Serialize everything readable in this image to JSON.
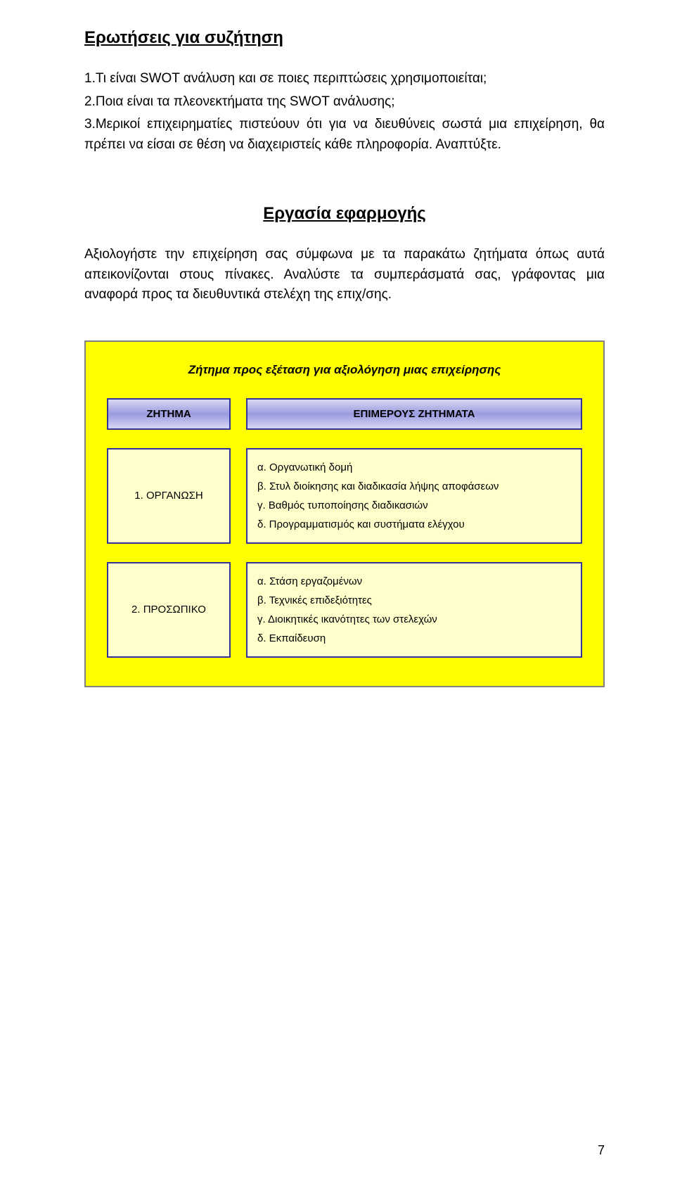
{
  "heading1": "Ερωτήσεις για συζήτηση",
  "questions": [
    "1.Τι είναι SWOT ανάλυση και σε ποιες περιπτώσεις χρησιμοποιείται;",
    "2.Ποια είναι τα πλεονεκτήματα της SWOT ανάλυσης;",
    "3.Μερικοί επιχειρηματίες πιστεύουν ότι για να διευθύνεις σωστά μια επιχείρηση, θα πρέπει να είσαι σε θέση να διαχειριστείς κάθε πληροφορία. Αναπτύξτε."
  ],
  "heading2": "Εργασία εφαρμογής",
  "para": "Αξιολογήστε την επιχείρηση σας σύμφωνα με τα παρακάτω ζητήματα όπως αυτά απεικονίζονται στους πίνακες. Αναλύστε τα συμπεράσματά σας, γράφοντας μια αναφορά προς τα διευθυντικά στελέχη της επιχ/σης.",
  "chart": {
    "bg_color": "#ffff00",
    "border_color": "#808080",
    "cell_border_color": "#333399",
    "cell_bg_color": "#ffffcc",
    "header_gradient_top": "#d7d7f3",
    "header_gradient_mid": "#9a9ae0",
    "title": "Ζήτημα προς εξέταση για αξιολόγηση μιας επιχείρησης",
    "header_left": "ΖΗΤΗΜΑ",
    "header_right": "ΕΠΙΜΕΡΟΥΣ ΖΗΤΗΜΑΤΑ",
    "rows": [
      {
        "left": "1. ΟΡΓΑΝΩΣΗ",
        "right": [
          "α. Οργανωτική δομή",
          "β. Στυλ διοίκησης και διαδικασία λήψης αποφάσεων",
          "γ. Βαθμός τυποποίησης διαδικασιών",
          "δ. Προγραμματισμός και συστήματα ελέγχου"
        ]
      },
      {
        "left": "2. ΠΡΟΣΩΠΙΚΟ",
        "right": [
          "α. Στάση εργαζομένων",
          "β. Τεχνικές επιδεξιότητες",
          "γ. Διοικητικές ικανότητες των στελεχών",
          "δ. Εκπαίδευση"
        ]
      }
    ]
  },
  "page_number": "7"
}
